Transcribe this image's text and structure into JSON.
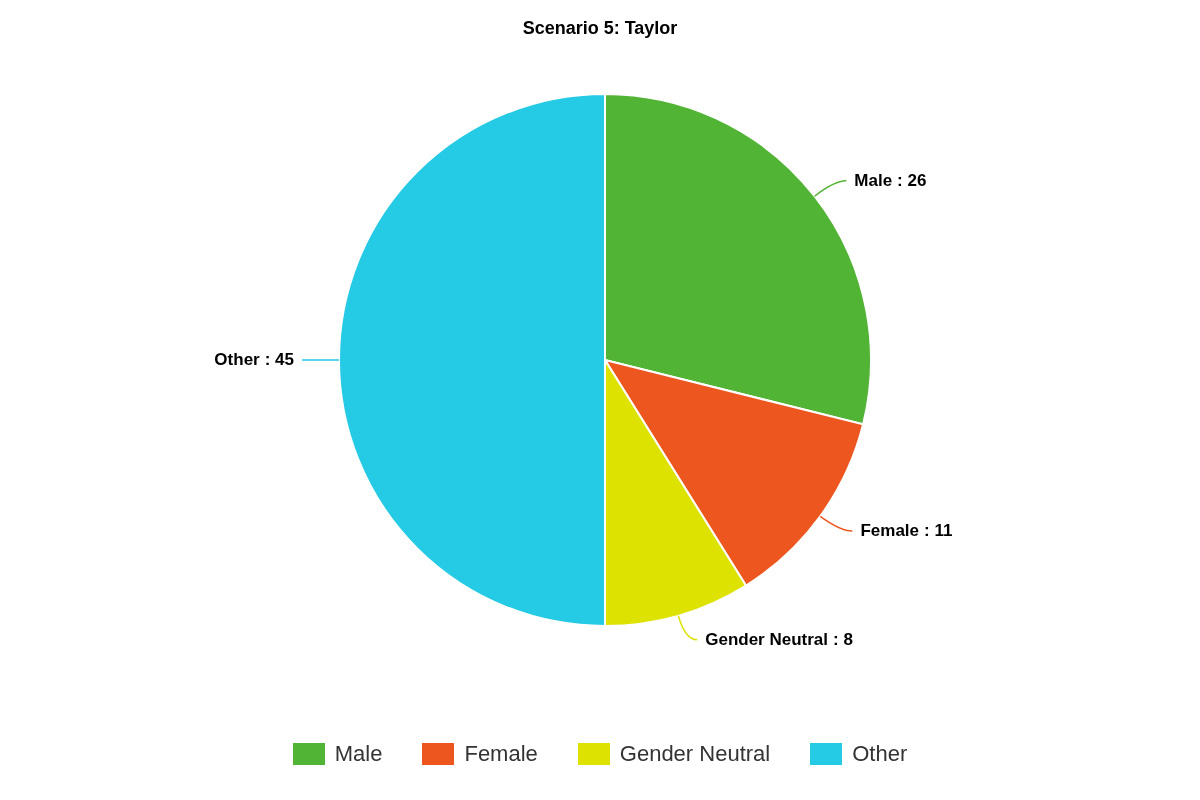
{
  "chart_data": {
    "type": "pie",
    "title": "Scenario 5: Taylor",
    "categories": [
      "Male",
      "Female",
      "Gender Neutral",
      "Other"
    ],
    "values": [
      26,
      11,
      8,
      45
    ],
    "colors": [
      "#52b434",
      "#ee561f",
      "#dde200",
      "#25cae4"
    ],
    "value_labels": [
      ": 26",
      ": 11",
      ": 8",
      ": 45"
    ],
    "legend": "bottom"
  }
}
